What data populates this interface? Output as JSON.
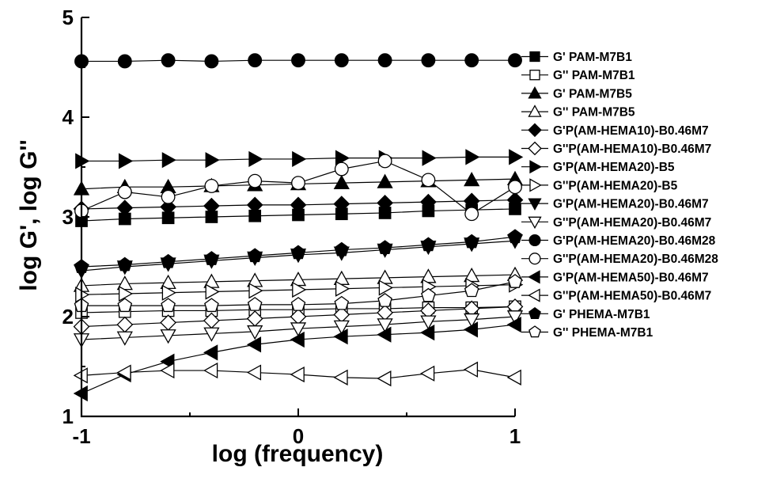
{
  "chart_data": {
    "type": "line",
    "xlabel": "log (frequency)",
    "ylabel": "log G', log G''",
    "xlim": [
      -1,
      1
    ],
    "ylim": [
      1,
      5
    ],
    "xticks": [
      -1,
      0,
      1
    ],
    "yticks": [
      1,
      2,
      3,
      4,
      5
    ],
    "x": [
      -1,
      -0.8,
      -0.6,
      -0.4,
      -0.2,
      0,
      0.2,
      0.4,
      0.6,
      0.8,
      1
    ],
    "grid": false,
    "legend_position": "right",
    "series": [
      {
        "name": "G' PAM-M7B1",
        "marker": "square",
        "filled": true,
        "values": [
          2.96,
          2.98,
          2.99,
          3.0,
          3.01,
          3.02,
          3.03,
          3.04,
          3.06,
          3.07,
          3.08
        ]
      },
      {
        "name": "G'' PAM-M7B1",
        "marker": "square",
        "filled": false,
        "values": [
          2.04,
          2.05,
          2.06,
          2.06,
          2.07,
          2.07,
          2.08,
          2.08,
          2.09,
          2.09,
          2.1
        ]
      },
      {
        "name": "G' PAM-M7B5",
        "marker": "triangle-up",
        "filled": true,
        "values": [
          3.28,
          3.3,
          3.3,
          3.31,
          3.32,
          3.33,
          3.34,
          3.35,
          3.36,
          3.37,
          3.38
        ]
      },
      {
        "name": "G'' PAM-M7B5",
        "marker": "triangle-up",
        "filled": false,
        "values": [
          2.31,
          2.33,
          2.34,
          2.35,
          2.36,
          2.37,
          2.38,
          2.39,
          2.4,
          2.41,
          2.42
        ]
      },
      {
        "name": "G'P(AM-HEMA10)-B0.46M7",
        "marker": "diamond",
        "filled": true,
        "values": [
          3.08,
          3.09,
          3.1,
          3.11,
          3.12,
          3.12,
          3.13,
          3.14,
          3.15,
          3.16,
          3.17
        ]
      },
      {
        "name": "G''P(AM-HEMA10)-B0.46M7",
        "marker": "diamond",
        "filled": false,
        "values": [
          1.9,
          1.92,
          1.94,
          1.96,
          1.98,
          2.0,
          2.02,
          2.04,
          2.06,
          2.08,
          2.1
        ]
      },
      {
        "name": "G'P(AM-HEMA20)-B5",
        "marker": "triangle-right",
        "filled": true,
        "values": [
          3.56,
          3.56,
          3.57,
          3.57,
          3.58,
          3.58,
          3.59,
          3.59,
          3.59,
          3.6,
          3.6
        ]
      },
      {
        "name": "G''P(AM-HEMA20)-B5",
        "marker": "triangle-right",
        "filled": false,
        "values": [
          2.22,
          2.23,
          2.24,
          2.25,
          2.26,
          2.27,
          2.28,
          2.29,
          2.3,
          2.31,
          2.32
        ]
      },
      {
        "name": "G'P(AM-HEMA20)-B0.46M7",
        "marker": "triangle-down",
        "filled": true,
        "values": [
          2.46,
          2.5,
          2.53,
          2.56,
          2.59,
          2.62,
          2.64,
          2.67,
          2.7,
          2.73,
          2.76
        ]
      },
      {
        "name": "G''P(AM-HEMA20)-B0.46M7",
        "marker": "triangle-down",
        "filled": false,
        "values": [
          1.77,
          1.79,
          1.81,
          1.83,
          1.85,
          1.88,
          1.9,
          1.92,
          1.95,
          1.97,
          2.0
        ]
      },
      {
        "name": "G'P(AM-HEMA20)-B0.46M28",
        "marker": "circle",
        "filled": true,
        "values": [
          4.56,
          4.56,
          4.57,
          4.56,
          4.57,
          4.57,
          4.57,
          4.57,
          4.57,
          4.57,
          4.57
        ]
      },
      {
        "name": "G''P(AM-HEMA20)-B0.46M28",
        "marker": "circle",
        "filled": false,
        "values": [
          3.06,
          3.25,
          3.2,
          3.31,
          3.36,
          3.34,
          3.48,
          3.56,
          3.37,
          3.03,
          3.3
        ]
      },
      {
        "name": "G'P(AM-HEMA50)-B0.46M7",
        "marker": "triangle-left",
        "filled": true,
        "values": [
          1.23,
          1.42,
          1.55,
          1.64,
          1.72,
          1.77,
          1.8,
          1.82,
          1.84,
          1.87,
          1.92
        ]
      },
      {
        "name": "G''P(AM-HEMA50)-B0.46M7",
        "marker": "triangle-left",
        "filled": false,
        "values": [
          1.41,
          1.44,
          1.46,
          1.46,
          1.44,
          1.42,
          1.39,
          1.38,
          1.43,
          1.47,
          1.39
        ]
      },
      {
        "name": "G' PHEMA-M7B1",
        "marker": "pentagon",
        "filled": true,
        "values": [
          2.5,
          2.52,
          2.55,
          2.58,
          2.61,
          2.64,
          2.67,
          2.69,
          2.72,
          2.75,
          2.8
        ]
      },
      {
        "name": "G'' PHEMA-M7B1",
        "marker": "pentagon",
        "filled": false,
        "values": [
          2.11,
          2.11,
          2.11,
          2.11,
          2.12,
          2.12,
          2.13,
          2.16,
          2.21,
          2.26,
          2.35
        ]
      }
    ]
  },
  "colors": {
    "line": "#000000",
    "marker_fill": "#000000",
    "open_fill": "#ffffff"
  }
}
